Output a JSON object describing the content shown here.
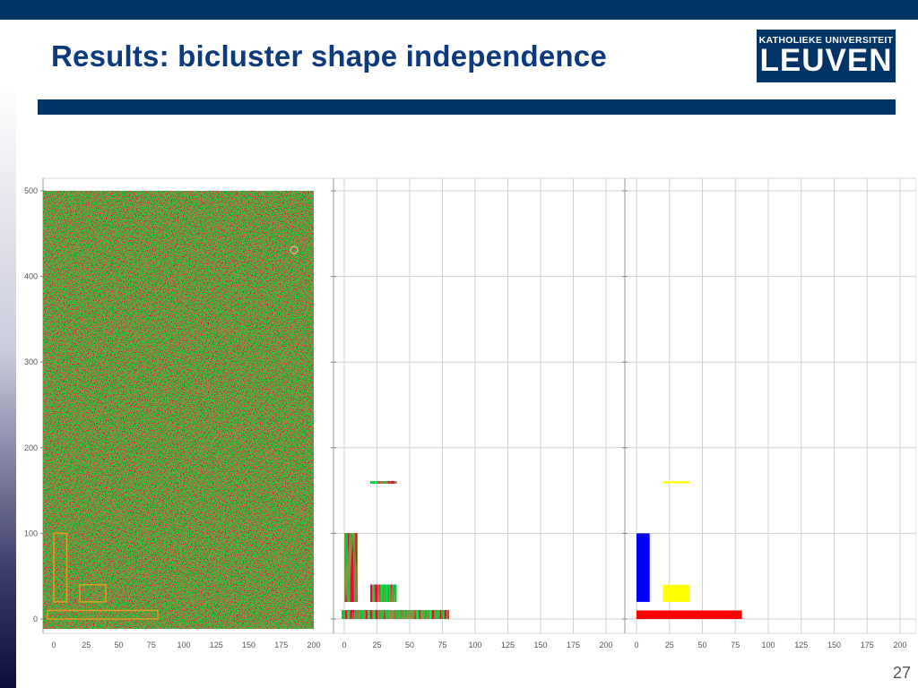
{
  "slide": {
    "title": "Results: bicluster shape independence",
    "number": "27",
    "logo": {
      "line1": "KATHOLIEKE UNIVERSITEIT",
      "line2": "LEUVEN"
    }
  },
  "colors": {
    "banner": "#003366",
    "title": "#0b3a7e",
    "heatmap_green": "#5a8c1c",
    "heatmap_red": "#a0401a",
    "outline": "#e0a020",
    "bicluster_blue": "#0000ff",
    "bicluster_yellow": "#ffff00",
    "bicluster_red": "#ff0000"
  },
  "chart_data": [
    {
      "type": "heatmap",
      "title": "",
      "xlim": [
        0,
        200
      ],
      "ylim": [
        0,
        500
      ],
      "x_ticks": [
        "0",
        "25",
        "50",
        "75",
        "100",
        "125",
        "150",
        "175",
        "200"
      ],
      "y_ticks": [
        "0",
        "100",
        "200",
        "300",
        "400",
        "500"
      ],
      "grid": false,
      "biclusters": [
        {
          "x": [
            0,
            10
          ],
          "y": [
            20,
            100
          ]
        },
        {
          "x": [
            20,
            40
          ],
          "y": [
            20,
            40
          ]
        },
        {
          "x": [
            -5,
            80
          ],
          "y": [
            0,
            10
          ]
        }
      ]
    },
    {
      "type": "heatmap",
      "title": "",
      "xlim": [
        0,
        200
      ],
      "ylim": [
        0,
        500
      ],
      "x_ticks": [
        "0",
        "25",
        "50",
        "75",
        "100",
        "125",
        "150",
        "175",
        "200"
      ],
      "grid": true,
      "biclusters": [
        {
          "x": [
            0,
            10
          ],
          "y": [
            20,
            100
          ]
        },
        {
          "x": [
            20,
            40
          ],
          "y": [
            20,
            40
          ]
        },
        {
          "x": [
            -2,
            80
          ],
          "y": [
            0,
            10
          ]
        },
        {
          "x": [
            20,
            40
          ],
          "y": [
            159,
            161
          ]
        }
      ]
    },
    {
      "type": "heatmap",
      "title": "",
      "xlim": [
        0,
        200
      ],
      "ylim": [
        0,
        500
      ],
      "x_ticks": [
        "0",
        "25",
        "50",
        "75",
        "100",
        "125",
        "150",
        "175",
        "200"
      ],
      "grid": true,
      "biclusters": [
        {
          "x": [
            0,
            10
          ],
          "y": [
            20,
            100
          ],
          "color": "blue"
        },
        {
          "x": [
            20,
            40
          ],
          "y": [
            20,
            40
          ],
          "color": "yellow"
        },
        {
          "x": [
            0,
            80
          ],
          "y": [
            0,
            10
          ],
          "color": "red"
        },
        {
          "x": [
            20,
            40
          ],
          "y": [
            159,
            161
          ],
          "color": "yellow"
        }
      ]
    }
  ]
}
